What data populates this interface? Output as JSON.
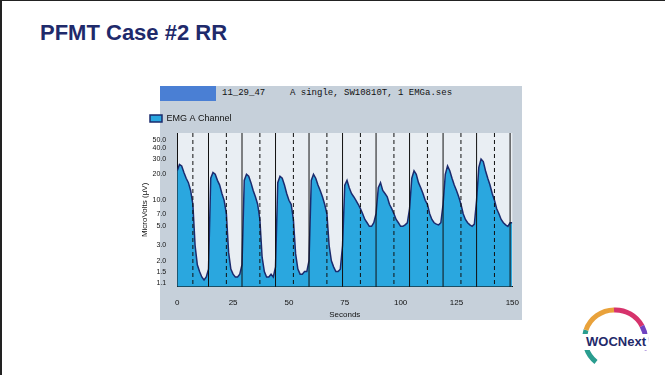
{
  "slide": {
    "title": "PFMT Case #2 RR"
  },
  "screen_header": {
    "time": "11_29_47",
    "file": "A single, SW10810T, 1 EMGa.ses"
  },
  "logo": {
    "text": "WOCNext"
  },
  "chart_data": {
    "type": "area",
    "ylabel": "MicroVolts (µV)",
    "xlabel": "Seconds",
    "log": "y",
    "grid": false,
    "legend": "top-left",
    "xlim": [
      0,
      150
    ],
    "xticks": [
      0,
      25,
      50,
      75,
      100,
      125,
      150
    ],
    "ylim": [
      1.0,
      60
    ],
    "yticks": [
      {
        "value": 1.1,
        "label": "1.1"
      },
      {
        "value": 1.5,
        "label": "1.5"
      },
      {
        "value": 2,
        "label": "2.0"
      },
      {
        "value": 3,
        "label": "3.0"
      },
      {
        "value": 5,
        "label": "5.0"
      },
      {
        "value": 7,
        "label": "7.0"
      },
      {
        "value": 10,
        "label": "10.0"
      },
      {
        "value": 20,
        "label": "20.0"
      },
      {
        "value": 30,
        "label": "30.0"
      },
      {
        "value": 40,
        "label": "40.0"
      },
      {
        "value": 50,
        "label": "50.0"
      }
    ],
    "x": [
      0,
      1,
      2,
      3,
      4,
      5,
      6,
      7,
      8,
      9,
      10,
      11,
      12,
      13,
      14,
      15,
      16,
      17,
      18,
      19,
      20,
      21,
      22,
      23,
      24,
      25,
      26,
      27,
      28,
      29,
      30,
      31,
      32,
      33,
      34,
      35,
      36,
      37,
      38,
      39,
      40,
      41,
      42,
      43,
      44,
      45,
      46,
      47,
      48,
      49,
      50,
      51,
      52,
      53,
      54,
      55,
      56,
      57,
      58,
      59,
      60,
      61,
      62,
      63,
      64,
      65,
      66,
      67,
      68,
      69,
      70,
      71,
      72,
      73,
      74,
      75,
      76,
      77,
      78,
      79,
      80,
      81,
      82,
      83,
      84,
      85,
      86,
      87,
      88,
      89,
      90,
      91,
      92,
      93,
      94,
      95,
      96,
      97,
      98,
      99,
      100,
      101,
      102,
      103,
      104,
      105,
      106,
      107,
      108,
      109,
      110,
      111,
      112,
      113,
      114,
      115,
      116,
      117,
      118,
      119,
      120,
      121,
      122,
      123,
      124,
      125,
      126,
      127,
      128,
      129,
      130,
      131,
      132,
      133,
      134,
      135,
      136,
      137,
      138,
      139,
      140,
      141,
      142,
      143,
      144,
      145,
      146,
      147,
      148,
      149,
      150
    ],
    "series": [
      {
        "name": "EMG A Channel",
        "color": "#2aa7df",
        "values": [
          22,
          26,
          25,
          21,
          18,
          16,
          13,
          9,
          3,
          1.8,
          1.5,
          1.3,
          1.2,
          1.3,
          1.6,
          18,
          21,
          20,
          17,
          15,
          12,
          10,
          7,
          2.5,
          1.6,
          1.4,
          1.3,
          1.3,
          1.4,
          1.8,
          17,
          20,
          19,
          16,
          13,
          11,
          9,
          6,
          2.2,
          1.5,
          1.3,
          1.3,
          1.4,
          1.3,
          1.7,
          16,
          19,
          18,
          15,
          12,
          10,
          9,
          6,
          2.4,
          1.6,
          1.4,
          1.4,
          1.5,
          1.5,
          2.0,
          17,
          20,
          18,
          15,
          13,
          11,
          9,
          7,
          3,
          2,
          1.7,
          1.5,
          1.5,
          1.6,
          3,
          15,
          17,
          14,
          12,
          11,
          10,
          9,
          8,
          7,
          6,
          5.5,
          5,
          5,
          5.5,
          7,
          14,
          16,
          13,
          12,
          11,
          9,
          8,
          7,
          6,
          5.5,
          5,
          5,
          5.2,
          5.5,
          8,
          18,
          22,
          20,
          16,
          14,
          12,
          10,
          9,
          7,
          6,
          5.5,
          5.3,
          5.2,
          5.5,
          9,
          20,
          25,
          22,
          18,
          15,
          13,
          11,
          9,
          7,
          6,
          5.5,
          5.2,
          5,
          5.3,
          10,
          24,
          30,
          28,
          22,
          18,
          15,
          12,
          10,
          8,
          7,
          6,
          5.5,
          5.2,
          5,
          5.5,
          5.5
        ]
      }
    ],
    "solid_lines": [
      14,
      29,
      44,
      59,
      74,
      89,
      104,
      119,
      134,
      149
    ],
    "dashed_lines": [
      7,
      22,
      37,
      52,
      67,
      82,
      97,
      112,
      127,
      142
    ]
  }
}
